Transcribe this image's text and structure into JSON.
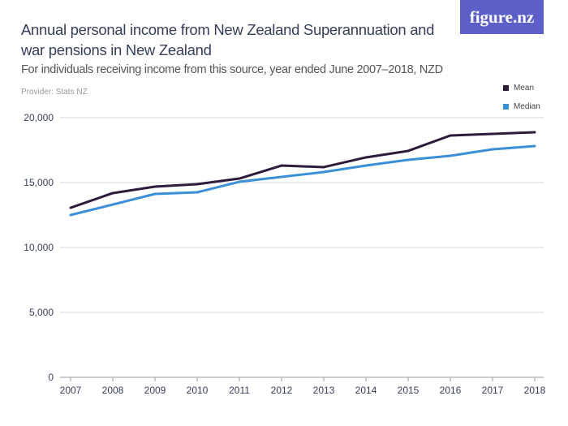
{
  "logo": "figure.nz",
  "chart_data": {
    "type": "line",
    "title": "Annual personal income from New Zealand Superannuation and war pensions in New Zealand",
    "subtitle": "For individuals receiving income from this source, year ended June 2007–2018, NZD",
    "provider": "Provider: Stats NZ",
    "x": [
      "2007",
      "2008",
      "2009",
      "2010",
      "2011",
      "2012",
      "2013",
      "2014",
      "2015",
      "2016",
      "2017",
      "2018"
    ],
    "ylim": [
      0,
      20000
    ],
    "yticks": [
      0,
      5000,
      10000,
      15000,
      20000
    ],
    "ytick_labels": [
      "0",
      "5,000",
      "10,000",
      "15,000",
      "20,000"
    ],
    "grid": true,
    "legend_placement": "top-right",
    "series": [
      {
        "name": "Mean",
        "color": "#2e1a3a",
        "values": [
          13060,
          14190,
          14690,
          14875,
          15310,
          16310,
          16190,
          16940,
          17440,
          18625,
          18750,
          18875
        ]
      },
      {
        "name": "Median",
        "color": "#3a8fd8",
        "values": [
          12500,
          13310,
          14125,
          14250,
          15060,
          15440,
          15810,
          16310,
          16750,
          17060,
          17560,
          17810
        ]
      }
    ]
  }
}
